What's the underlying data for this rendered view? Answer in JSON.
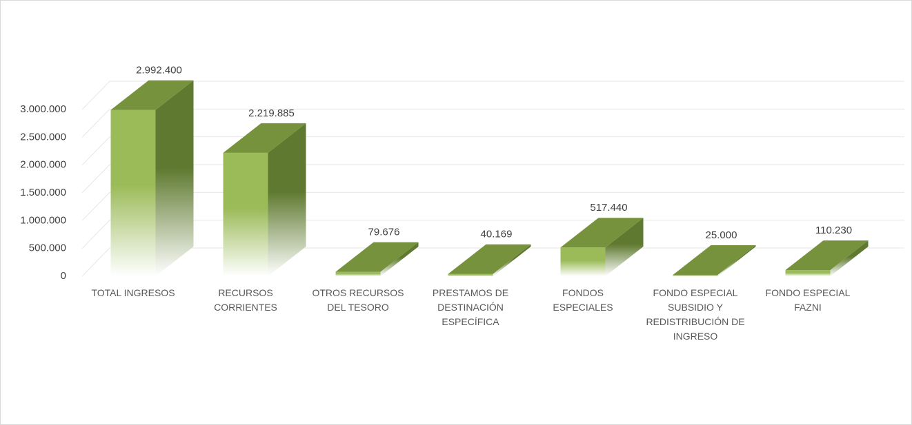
{
  "chart_data": {
    "type": "bar3d",
    "categories": [
      "TOTAL INGRESOS",
      "RECURSOS CORRIENTES",
      "OTROS RECURSOS DEL TESORO",
      "PRESTAMOS DE DESTINACIÓN ESPECÍFICA",
      "FONDOS ESPECIALES",
      "FONDO ESPECIAL SUBSIDIO Y REDISTRIBUCIÓN DE INGRESO",
      "FONDO ESPECIAL FAZNI"
    ],
    "values": [
      2992400,
      2219885,
      79676,
      40169,
      517440,
      25000,
      110230
    ],
    "value_labels": [
      "2.992.400",
      "2.219.885",
      "79.676",
      "40.169",
      "517.440",
      "25.000",
      "110.230"
    ],
    "color": "#9bbb59",
    "ylim": [
      0,
      3000000
    ],
    "yticks": [
      0,
      {
        "value": 500000,
        "label": "500.000"
      },
      {
        "value": 1000000,
        "label": "1.000.000"
      },
      {
        "value": 1500000,
        "label": "1.500.000"
      },
      {
        "value": 2000000,
        "label": "2.000.000"
      },
      {
        "value": 2500000,
        "label": "2.500.000"
      },
      {
        "value": 3000000,
        "label": "3.000.000"
      }
    ],
    "grid": true
  }
}
